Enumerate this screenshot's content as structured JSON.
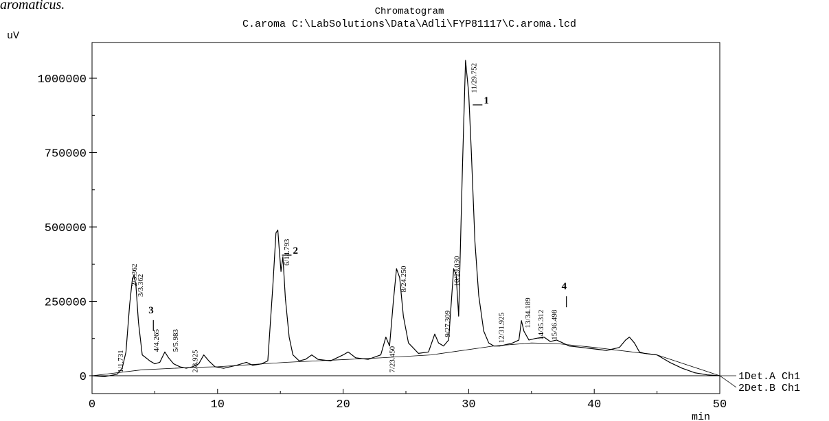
{
  "caption_fragment": "aromaticus.",
  "chart_data": {
    "type": "line",
    "title": "Chromatogram",
    "subtitle": "C.aroma C:\\LabSolutions\\Data\\Adli\\FYP81117\\C.aroma.lcd",
    "ylabel": "uV",
    "xlabel": "min",
    "xlim": [
      0,
      50
    ],
    "ylim": [
      -60000,
      1120000
    ],
    "x_ticks": [
      0,
      10,
      20,
      30,
      40,
      50
    ],
    "y_ticks": [
      0,
      250000,
      500000,
      750000,
      1000000
    ],
    "legend": [
      "1Det.A Ch1",
      "2Det.B Ch1"
    ],
    "legend_position": "right",
    "series": [
      {
        "x": [
          0,
          1,
          2,
          2.4,
          2.7,
          3.0,
          3.2,
          3.35,
          3.5,
          3.7,
          4.0,
          4.3,
          4.6,
          5.0,
          5.4,
          5.8,
          6.1,
          6.5,
          7.0,
          7.5,
          8.0,
          8.5,
          8.9,
          9.3,
          9.8,
          10.5,
          11.5,
          12.3,
          12.8,
          13.5,
          14.0,
          14.4,
          14.65,
          14.8,
          14.9,
          15.05,
          15.2,
          15.4,
          15.7,
          16.0,
          16.5,
          17.0,
          17.5,
          18.0,
          19.0,
          20.0,
          20.4,
          21.0,
          22.0,
          23.0,
          23.4,
          23.7,
          24.0,
          24.25,
          24.5,
          24.8,
          25.2,
          26.0,
          26.8,
          27.3,
          27.6,
          28.0,
          28.4,
          28.8,
          29.0,
          29.2,
          29.5,
          29.75,
          30.0,
          30.2,
          30.5,
          30.8,
          31.2,
          31.6,
          32.0,
          32.5,
          33.0,
          33.5,
          34.0,
          34.2,
          34.4,
          34.8,
          35.3,
          36.0,
          36.5,
          37.0,
          37.5,
          38.0,
          39.0,
          40.0,
          41.0,
          42.0,
          42.5,
          42.8,
          43.2,
          43.6,
          44.0,
          45.0,
          46.0,
          47.0,
          48.0,
          49.0,
          50.0
        ],
        "y": [
          0,
          -3000,
          5000,
          25000,
          80000,
          240000,
          320000,
          340000,
          300000,
          180000,
          70000,
          60000,
          50000,
          40000,
          45000,
          80000,
          60000,
          40000,
          30000,
          25000,
          30000,
          40000,
          70000,
          50000,
          30000,
          25000,
          35000,
          45000,
          35000,
          40000,
          50000,
          300000,
          480000,
          490000,
          430000,
          350000,
          400000,
          260000,
          130000,
          70000,
          50000,
          55000,
          70000,
          55000,
          50000,
          70000,
          80000,
          60000,
          55000,
          70000,
          130000,
          100000,
          250000,
          360000,
          330000,
          200000,
          110000,
          75000,
          80000,
          140000,
          110000,
          100000,
          120000,
          360000,
          340000,
          200000,
          700000,
          1060000,
          950000,
          760000,
          450000,
          270000,
          150000,
          110000,
          100000,
          100000,
          105000,
          110000,
          120000,
          185000,
          150000,
          120000,
          125000,
          130000,
          115000,
          120000,
          110000,
          100000,
          95000,
          90000,
          85000,
          95000,
          120000,
          130000,
          110000,
          80000,
          75000,
          70000,
          45000,
          25000,
          10000,
          3000,
          0
        ]
      }
    ],
    "baseline": {
      "x": [
        0,
        4,
        8,
        10,
        15.5,
        23.0,
        27.0,
        32.0,
        35.0,
        37.0,
        40.0,
        45.0,
        50.0
      ],
      "y": [
        0,
        20000,
        28000,
        30000,
        45000,
        60000,
        70000,
        100000,
        110000,
        108000,
        95000,
        70000,
        0
      ]
    },
    "peak_labels": [
      {
        "text": "1/1.731",
        "x": 2.45,
        "y": 10000
      },
      {
        "text": "2/3.362",
        "x": 3.55,
        "y": 300000
      },
      {
        "text": "3/3.362",
        "x": 4.05,
        "y": 265000
      },
      {
        "text": "4/4.265",
        "x": 5.3,
        "y": 80000
      },
      {
        "text": "5/5.983",
        "x": 6.85,
        "y": 80000
      },
      {
        "text": "2/8.925",
        "x": 8.4,
        "y": 10000
      },
      {
        "text": "6/14.793",
        "x": 15.7,
        "y": 370000
      },
      {
        "text": "7/23.450",
        "x": 24.1,
        "y": 10000
      },
      {
        "text": "8/24.250",
        "x": 25.0,
        "y": 280000
      },
      {
        "text": "9/27.309",
        "x": 28.5,
        "y": 130000
      },
      {
        "text": "10/29.030",
        "x": 29.25,
        "y": 300000
      },
      {
        "text": "11/29.752",
        "x": 30.6,
        "y": 950000
      },
      {
        "text": "12/31.925",
        "x": 32.8,
        "y": 110000
      },
      {
        "text": "13/34.189",
        "x": 34.9,
        "y": 160000
      },
      {
        "text": "14/35.312",
        "x": 35.95,
        "y": 120000
      },
      {
        "text": "15/36.498",
        "x": 37.0,
        "y": 120000
      }
    ],
    "annotations": [
      {
        "text": "1",
        "x": 31.2,
        "y": 915000
      },
      {
        "text": "2",
        "x": 16.0,
        "y": 410000
      },
      {
        "text": "3",
        "x": 4.5,
        "y": 210000
      },
      {
        "text": "4",
        "x": 37.4,
        "y": 290000
      }
    ]
  }
}
